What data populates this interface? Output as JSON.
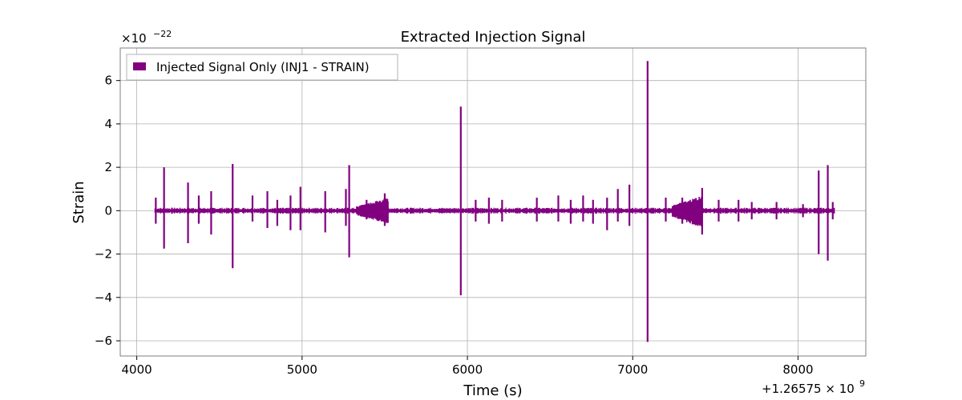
{
  "chart_data": {
    "type": "line",
    "title": "Extracted Injection Signal",
    "xlabel": "Time (s)",
    "ylabel": "Strain",
    "y_multiplier_text": "×10",
    "y_multiplier_exp": "−22",
    "x_offset_text": "+1.26575 × 10",
    "x_offset_exp": "9",
    "xlim": [
      3900,
      8410
    ],
    "ylim": [
      -6.7,
      7.5
    ],
    "xticks": [
      4000,
      5000,
      6000,
      7000,
      8000
    ],
    "xtick_labels": [
      "4000",
      "5000",
      "6000",
      "7000",
      "8000"
    ],
    "yticks": [
      -6,
      -4,
      -2,
      0,
      2,
      4,
      6
    ],
    "ytick_labels": [
      "−6",
      "−4",
      "−2",
      "0",
      "2",
      "4",
      "6"
    ],
    "grid": true,
    "legend_position": "top-left",
    "color": "#800080",
    "series": [
      {
        "name": "Injected Signal Only (INJ1 - STRAIN)",
        "x_range": [
          4110,
          8220
        ],
        "baseline_amplitude": 0.1,
        "spikes": [
          {
            "x": 4115,
            "max": 0.6,
            "min": -0.6
          },
          {
            "x": 4165,
            "max": 2.0,
            "min": -1.75
          },
          {
            "x": 4310,
            "max": 1.3,
            "min": -1.5
          },
          {
            "x": 4375,
            "max": 0.7,
            "min": -0.6
          },
          {
            "x": 4450,
            "max": 0.9,
            "min": -1.1
          },
          {
            "x": 4580,
            "max": 2.15,
            "min": -2.65
          },
          {
            "x": 4700,
            "max": 0.7,
            "min": -0.5
          },
          {
            "x": 4790,
            "max": 0.9,
            "min": -0.8
          },
          {
            "x": 4850,
            "max": 0.5,
            "min": -0.7
          },
          {
            "x": 4930,
            "max": 0.7,
            "min": -0.9
          },
          {
            "x": 4990,
            "max": 1.1,
            "min": -0.9
          },
          {
            "x": 5140,
            "max": 0.9,
            "min": -1.0
          },
          {
            "x": 5265,
            "max": 1.0,
            "min": -0.7
          },
          {
            "x": 5285,
            "max": 2.1,
            "min": -2.15
          },
          {
            "x": 5390,
            "max": 0.5,
            "min": -0.4
          },
          {
            "x": 5500,
            "max": 0.8,
            "min": -0.7
          },
          {
            "x": 5960,
            "max": 4.8,
            "min": -3.9
          },
          {
            "x": 6050,
            "max": 0.5,
            "min": -0.5
          },
          {
            "x": 6130,
            "max": 0.6,
            "min": -0.6
          },
          {
            "x": 6210,
            "max": 0.5,
            "min": -0.5
          },
          {
            "x": 6420,
            "max": 0.6,
            "min": -0.5
          },
          {
            "x": 6550,
            "max": 0.7,
            "min": -0.5
          },
          {
            "x": 6625,
            "max": 0.5,
            "min": -0.6
          },
          {
            "x": 6700,
            "max": 0.7,
            "min": -0.5
          },
          {
            "x": 6760,
            "max": 0.5,
            "min": -0.6
          },
          {
            "x": 6845,
            "max": 0.6,
            "min": -0.9
          },
          {
            "x": 6910,
            "max": 1.0,
            "min": -0.5
          },
          {
            "x": 6980,
            "max": 1.2,
            "min": -0.7
          },
          {
            "x": 7090,
            "max": 6.9,
            "min": -6.05
          },
          {
            "x": 7200,
            "max": 0.6,
            "min": -0.5
          },
          {
            "x": 7300,
            "max": 0.6,
            "min": -0.6
          },
          {
            "x": 7420,
            "max": 1.05,
            "min": -1.1
          },
          {
            "x": 7520,
            "max": 0.5,
            "min": -0.5
          },
          {
            "x": 7640,
            "max": 0.5,
            "min": -0.5
          },
          {
            "x": 7720,
            "max": 0.4,
            "min": -0.4
          },
          {
            "x": 7870,
            "max": 0.4,
            "min": -0.4
          },
          {
            "x": 8030,
            "max": 0.3,
            "min": -0.3
          },
          {
            "x": 8125,
            "max": 1.85,
            "min": -2.0
          },
          {
            "x": 8180,
            "max": 2.1,
            "min": -2.3
          },
          {
            "x": 8210,
            "max": 0.4,
            "min": -0.4
          }
        ],
        "bursts": [
          {
            "x_start": 5330,
            "x_end": 5520,
            "max": 0.6,
            "min": -0.6
          },
          {
            "x_start": 7240,
            "x_end": 7420,
            "max": 0.7,
            "min": -0.8
          }
        ]
      }
    ]
  }
}
